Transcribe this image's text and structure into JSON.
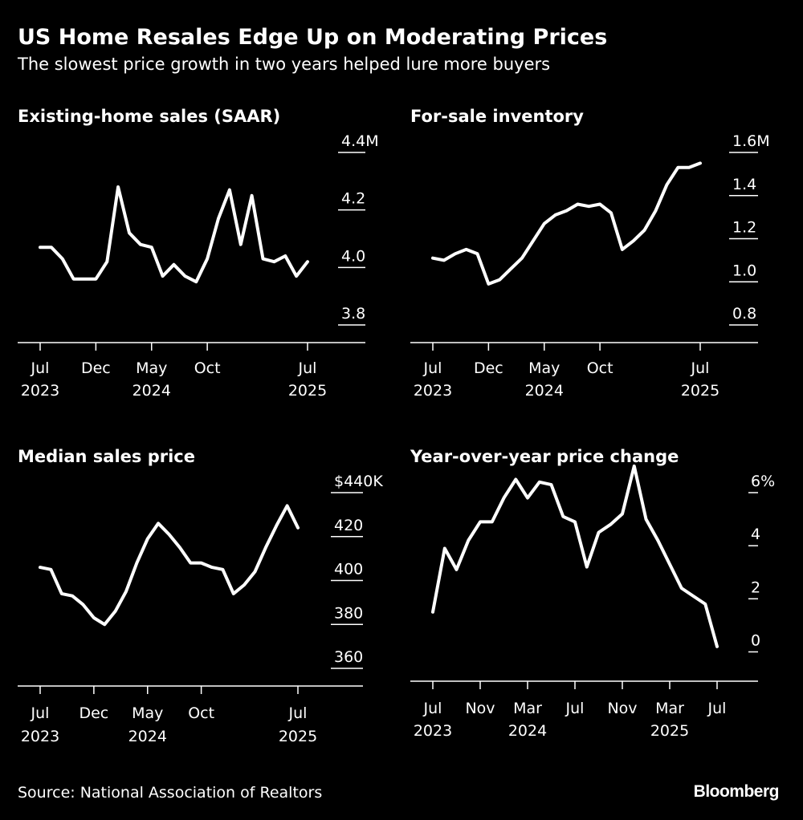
{
  "title": "US Home Resales Edge Up on Moderating Prices",
  "subtitle": "The slowest price growth in two years helped lure more buyers",
  "source": "Source: National Association of Realtors",
  "brand": "Bloomberg",
  "colors": {
    "background": "#000000",
    "line": "#ffffff",
    "text": "#ffffff"
  },
  "chart_data": [
    {
      "type": "line",
      "title": "Existing-home sales (SAAR)",
      "xlabel": "",
      "ylabel": "",
      "ylim": [
        3.8,
        4.4
      ],
      "ytick_values": [
        3.8,
        4.0,
        4.2,
        4.4
      ],
      "ytick_labels": [
        "3.8",
        "4.0",
        "4.2",
        "4.4M"
      ],
      "xtick_indices": [
        0,
        5,
        10,
        15,
        24
      ],
      "xtick_labels": [
        "Jul",
        "Dec",
        "May",
        "Oct",
        "Jul"
      ],
      "xtick_years": [
        "2023",
        "",
        "2024",
        "",
        "2025"
      ],
      "x": [
        "2023-07",
        "2023-08",
        "2023-09",
        "2023-10",
        "2023-11",
        "2023-12",
        "2024-01",
        "2024-02",
        "2024-03",
        "2024-04",
        "2024-05",
        "2024-06",
        "2024-07",
        "2024-08",
        "2024-09",
        "2024-10",
        "2024-11",
        "2024-12",
        "2025-01",
        "2025-02",
        "2025-03",
        "2025-04",
        "2025-05",
        "2025-06",
        "2025-07"
      ],
      "values": [
        4.07,
        4.07,
        4.03,
        3.96,
        3.96,
        3.96,
        4.02,
        4.28,
        4.12,
        4.08,
        4.07,
        3.97,
        4.01,
        3.97,
        3.95,
        4.03,
        4.17,
        4.27,
        4.08,
        4.25,
        4.03,
        4.02,
        4.04,
        3.97,
        4.02
      ]
    },
    {
      "type": "line",
      "title": "For-sale inventory",
      "xlabel": "",
      "ylabel": "",
      "ylim": [
        0.8,
        1.6
      ],
      "ytick_values": [
        0.8,
        1.0,
        1.2,
        1.4,
        1.6
      ],
      "ytick_labels": [
        "0.8",
        "1.0",
        "1.2",
        "1.4",
        "1.6M"
      ],
      "xtick_indices": [
        0,
        5,
        10,
        15,
        24
      ],
      "xtick_labels": [
        "Jul",
        "Dec",
        "May",
        "Oct",
        "Jul"
      ],
      "xtick_years": [
        "2023",
        "",
        "2024",
        "",
        "2025"
      ],
      "x": [
        "2023-07",
        "2023-08",
        "2023-09",
        "2023-10",
        "2023-11",
        "2023-12",
        "2024-01",
        "2024-02",
        "2024-03",
        "2024-04",
        "2024-05",
        "2024-06",
        "2024-07",
        "2024-08",
        "2024-09",
        "2024-10",
        "2024-11",
        "2024-12",
        "2025-01",
        "2025-02",
        "2025-03",
        "2025-04",
        "2025-05",
        "2025-06",
        "2025-07"
      ],
      "values": [
        1.11,
        1.1,
        1.13,
        1.15,
        1.13,
        0.99,
        1.01,
        1.06,
        1.11,
        1.19,
        1.27,
        1.31,
        1.33,
        1.36,
        1.35,
        1.36,
        1.32,
        1.15,
        1.19,
        1.24,
        1.33,
        1.45,
        1.53,
        1.53,
        1.55
      ]
    },
    {
      "type": "line",
      "title": "Median sales price",
      "xlabel": "",
      "ylabel": "",
      "ylim": [
        360,
        440
      ],
      "ytick_values": [
        360,
        380,
        400,
        420,
        440
      ],
      "ytick_labels": [
        "360",
        "380",
        "400",
        "420",
        "$440K"
      ],
      "xtick_indices": [
        0,
        5,
        10,
        15,
        24
      ],
      "xtick_labels": [
        "Jul",
        "Dec",
        "May",
        "Oct",
        "Jul"
      ],
      "xtick_years": [
        "2023",
        "",
        "2024",
        "",
        "2025"
      ],
      "x": [
        "2023-07",
        "2023-08",
        "2023-09",
        "2023-10",
        "2023-11",
        "2023-12",
        "2024-01",
        "2024-02",
        "2024-03",
        "2024-04",
        "2024-05",
        "2024-06",
        "2024-07",
        "2024-08",
        "2024-09",
        "2024-10",
        "2024-11",
        "2024-12",
        "2025-01",
        "2025-02",
        "2025-03",
        "2025-04",
        "2025-05",
        "2025-06",
        "2025-07"
      ],
      "values": [
        406,
        405,
        394,
        393,
        389,
        383,
        380,
        386,
        395,
        408,
        419,
        426,
        421,
        415,
        408,
        408,
        406,
        405,
        394,
        398,
        404,
        415,
        425,
        434,
        424
      ]
    },
    {
      "type": "line",
      "title": "Year-over-year price change",
      "xlabel": "",
      "ylabel": "",
      "ylim": [
        -0.5,
        6
      ],
      "ytick_values": [
        0,
        2,
        4,
        6
      ],
      "ytick_labels": [
        "0",
        "2",
        "4",
        "6%"
      ],
      "xtick_indices": [
        0,
        4,
        8,
        12,
        16,
        20,
        24
      ],
      "xtick_labels": [
        "Jul",
        "Nov",
        "Mar",
        "Jul",
        "Nov",
        "Mar",
        "Jul"
      ],
      "xtick_years": [
        "2023",
        "",
        "2024",
        "",
        "",
        "2025",
        ""
      ],
      "x": [
        "2023-07",
        "2023-08",
        "2023-09",
        "2023-10",
        "2023-11",
        "2023-12",
        "2024-01",
        "2024-02",
        "2024-03",
        "2024-04",
        "2024-05",
        "2024-06",
        "2024-07",
        "2024-08",
        "2024-09",
        "2024-10",
        "2024-11",
        "2024-12",
        "2025-01",
        "2025-02",
        "2025-03",
        "2025-04",
        "2025-05",
        "2025-06",
        "2025-07"
      ],
      "values": [
        1.5,
        3.9,
        3.1,
        4.2,
        4.9,
        4.9,
        5.8,
        6.5,
        5.8,
        6.4,
        6.3,
        5.1,
        4.9,
        3.2,
        4.5,
        4.8,
        5.2,
        7.0,
        5.0,
        4.2,
        3.3,
        2.4,
        2.1,
        1.8,
        0.2
      ]
    }
  ]
}
